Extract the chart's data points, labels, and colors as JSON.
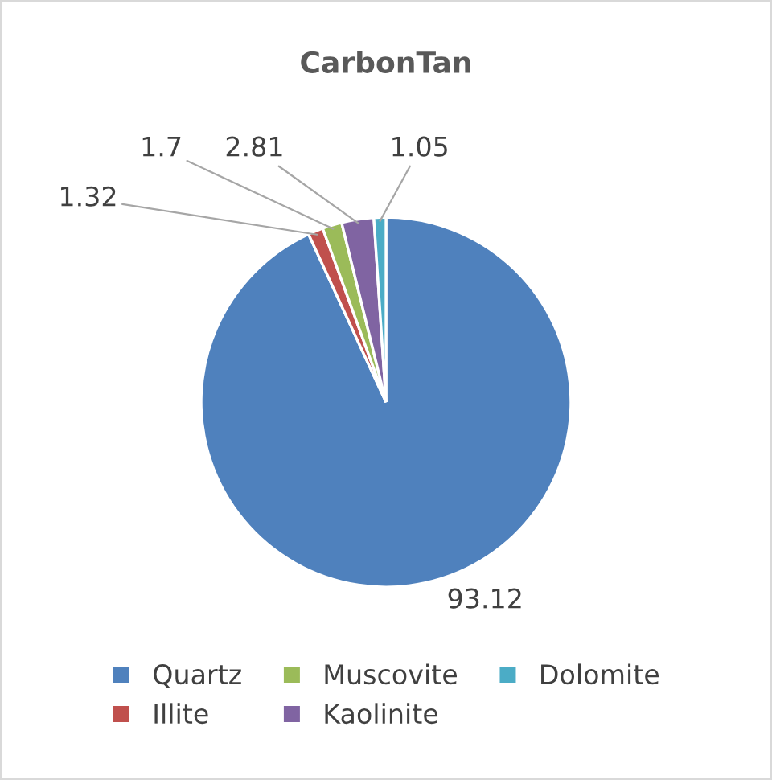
{
  "chart_data": {
    "type": "pie",
    "title": "CarbonTan",
    "categories": [
      "Quartz",
      "Illite",
      "Muscovite",
      "Kaolinite",
      "Dolomite"
    ],
    "values": [
      93.12,
      1.32,
      1.7,
      2.81,
      1.05
    ],
    "colors": [
      "#4f81bd",
      "#c0504d",
      "#9bbb59",
      "#8064a2",
      "#4bacc6"
    ],
    "data_labels": true,
    "legend": "bottom"
  }
}
